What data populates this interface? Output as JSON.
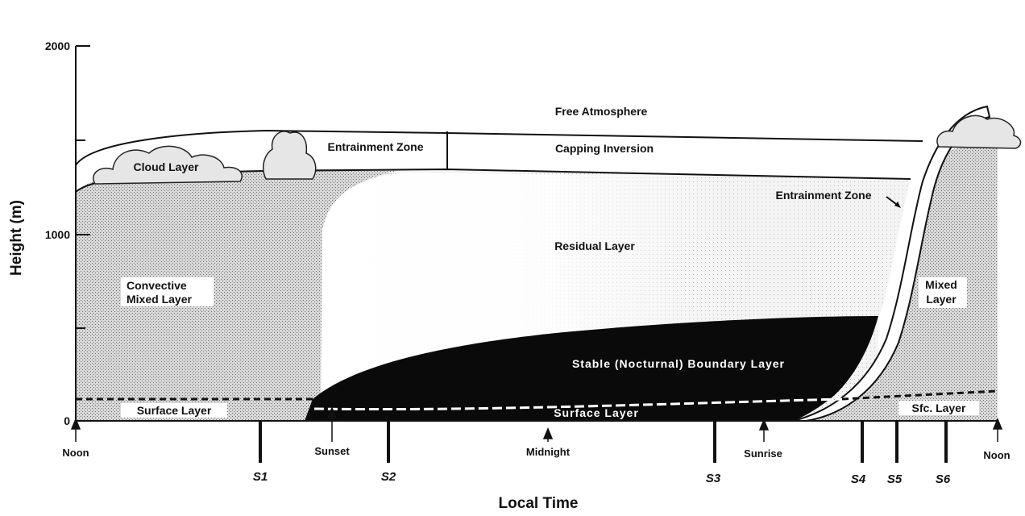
{
  "axes": {
    "y_label": "Height (m)",
    "x_label": "Local Time",
    "y_ticks": [
      "2000",
      "1000",
      "0"
    ]
  },
  "time_markers": [
    "Noon",
    "Sunset",
    "Midnight",
    "Sunrise",
    "Noon"
  ],
  "soundings": [
    "S1",
    "S2",
    "S3",
    "S4",
    "S5",
    "S6"
  ],
  "layers": {
    "free_atmosphere": "Free Atmosphere",
    "capping_inversion": "Capping Inversion",
    "entrainment_zone_day": "Entrainment Zone",
    "entrainment_zone_morning": "Entrainment Zone",
    "cloud_layer": "Cloud Layer",
    "convective_mixed_layer": "Convective Mixed Layer",
    "convective_mixed_layer_line1": "Convective",
    "convective_mixed_layer_line2": "Mixed Layer",
    "residual_layer": "Residual Layer",
    "stable_boundary_layer": "Stable (Nocturnal) Boundary Layer",
    "surface_layer_day": "Surface Layer",
    "surface_layer_night": "Surface Layer",
    "mixed_layer_line1": "Mixed",
    "mixed_layer_line2": "Layer",
    "sfc_layer": "Sfc. Layer"
  }
}
